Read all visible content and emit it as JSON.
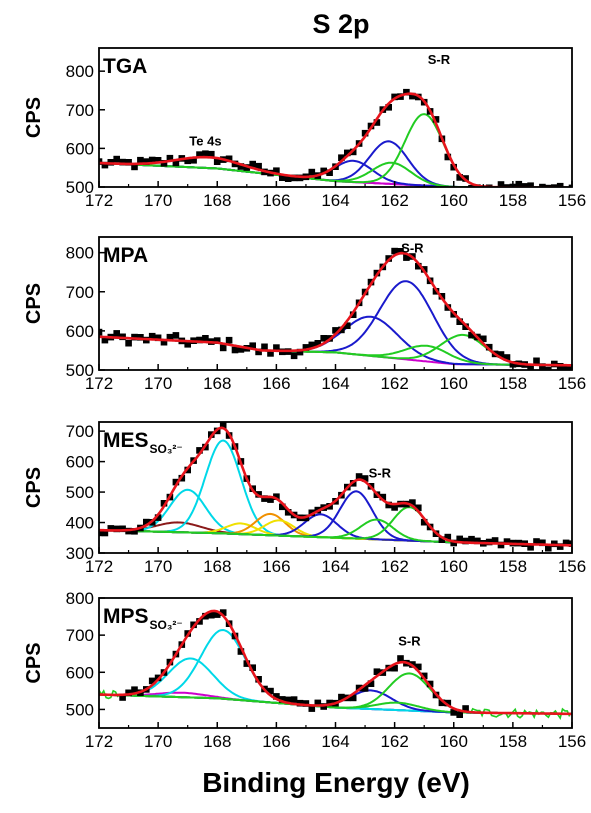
{
  "chart_data": {
    "title": "S 2p",
    "xlabel": "Binding Energy (eV)",
    "colors": {
      "data": "#000000",
      "envelope": "#e8141c",
      "background": "#cc00cc",
      "sr_a": "#1a1acc",
      "sr_b": "#22cc22",
      "sulfonate_a": "#00d8e8",
      "extra_a": "#f0e000",
      "extra_b": "#f09000",
      "brown": "#8b1a1a",
      "noisy_line": "#22cc22"
    },
    "panels": [
      {
        "type": "scatter",
        "label": "TGA",
        "label_sub": "",
        "ylabel": "CPS",
        "x_ticks": [
          "172",
          "170",
          "168",
          "166",
          "164",
          "162",
          "160",
          "158",
          "156"
        ],
        "y_ticks": [
          "500",
          "600",
          "700",
          "800"
        ],
        "xlim": [
          172,
          156
        ],
        "ylim": [
          500,
          860
        ],
        "annotations": [
          {
            "text": "Te 4s",
            "x": 168.4,
            "y": 608
          },
          {
            "text": "S-R",
            "x": 160.5,
            "y": 818
          }
        ],
        "background": [
          [
            172,
            562
          ],
          [
            168,
            548
          ],
          [
            164,
            515
          ],
          [
            160,
            500
          ],
          [
            156,
            498
          ]
        ],
        "peaks": [
          {
            "role": "te",
            "center": 168.3,
            "height": 28,
            "width": 1.1,
            "color": "#cc00cc"
          },
          {
            "role": "sr",
            "center": 163.4,
            "height": 55,
            "width": 0.65,
            "color": "#1a1acc"
          },
          {
            "role": "sr",
            "center": 162.2,
            "height": 110,
            "width": 0.65,
            "color": "#1a1acc"
          },
          {
            "role": "sr",
            "center": 162.1,
            "height": 55,
            "width": 0.65,
            "color": "#22cc22"
          },
          {
            "role": "sr",
            "center": 161.0,
            "height": 185,
            "width": 0.65,
            "color": "#22cc22"
          }
        ],
        "noise": 10
      },
      {
        "type": "scatter",
        "label": "MPA",
        "label_sub": "",
        "ylabel": "CPS",
        "x_ticks": [
          "172",
          "170",
          "168",
          "166",
          "164",
          "162",
          "160",
          "158",
          "156"
        ],
        "y_ticks": [
          "500",
          "600",
          "700",
          "800"
        ],
        "xlim": [
          172,
          156
        ],
        "ylim": [
          500,
          840
        ],
        "annotations": [
          {
            "text": "S-R",
            "x": 161.4,
            "y": 800
          }
        ],
        "background": [
          [
            172,
            585
          ],
          [
            168,
            570
          ],
          [
            166.5,
            550
          ],
          [
            164,
            545
          ],
          [
            160,
            515
          ],
          [
            156,
            512
          ]
        ],
        "peaks": [
          {
            "role": "sr",
            "center": 162.8,
            "height": 100,
            "width": 0.9,
            "color": "#1a1acc"
          },
          {
            "role": "sr",
            "center": 161.6,
            "height": 200,
            "width": 0.9,
            "color": "#1a1acc"
          },
          {
            "role": "sr",
            "center": 160.9,
            "height": 40,
            "width": 0.75,
            "color": "#22cc22"
          },
          {
            "role": "sr",
            "center": 159.7,
            "height": 75,
            "width": 0.75,
            "color": "#22cc22"
          }
        ],
        "noise": 11
      },
      {
        "type": "scatter",
        "label": "MES",
        "label_sub": "SO₃²⁻",
        "ylabel": "CPS",
        "x_ticks": [
          "172",
          "170",
          "168",
          "166",
          "164",
          "162",
          "160",
          "158",
          "156"
        ],
        "y_ticks": [
          "300",
          "400",
          "500",
          "600",
          "700"
        ],
        "xlim": [
          172,
          156
        ],
        "ylim": [
          300,
          730
        ],
        "annotations": [
          {
            "text": "S-R",
            "x": 162.5,
            "y": 548
          }
        ],
        "background": [
          [
            172,
            375
          ],
          [
            168,
            365
          ],
          [
            164,
            350
          ],
          [
            160,
            335
          ],
          [
            156,
            325
          ]
        ],
        "peaks": [
          {
            "role": "brown",
            "center": 169.3,
            "height": 32,
            "width": 0.75,
            "color": "#8b1a1a"
          },
          {
            "role": "sulfonate",
            "center": 169.0,
            "height": 140,
            "width": 0.6,
            "color": "#00d8e8"
          },
          {
            "role": "sulfonate",
            "center": 167.8,
            "height": 305,
            "width": 0.6,
            "color": "#00d8e8"
          },
          {
            "role": "extra",
            "center": 167.2,
            "height": 35,
            "width": 0.5,
            "color": "#f0e000"
          },
          {
            "role": "extra",
            "center": 166.2,
            "height": 70,
            "width": 0.5,
            "color": "#f09000"
          },
          {
            "role": "extra2",
            "center": 165.9,
            "height": 50,
            "width": 0.5,
            "color": "#f0e000"
          },
          {
            "role": "sr",
            "center": 164.5,
            "height": 75,
            "width": 0.55,
            "color": "#1a1acc"
          },
          {
            "role": "sr",
            "center": 163.3,
            "height": 155,
            "width": 0.55,
            "color": "#1a1acc"
          },
          {
            "role": "sr",
            "center": 162.6,
            "height": 65,
            "width": 0.55,
            "color": "#22cc22"
          },
          {
            "role": "sr",
            "center": 161.5,
            "height": 110,
            "width": 0.55,
            "color": "#22cc22"
          }
        ],
        "noise": 10
      },
      {
        "type": "scatter",
        "label": "MPS",
        "label_sub": "SO₃²⁻",
        "ylabel": "CPS",
        "x_ticks": [
          "172",
          "170",
          "168",
          "166",
          "164",
          "162",
          "160",
          "158",
          "156"
        ],
        "y_ticks": [
          "500",
          "600",
          "700",
          "800"
        ],
        "xlim": [
          172,
          156
        ],
        "ylim": [
          450,
          800
        ],
        "annotations": [
          {
            "text": "S-R",
            "x": 161.5,
            "y": 672
          }
        ],
        "background": [
          [
            172,
            540
          ],
          [
            168,
            530
          ],
          [
            164,
            505
          ],
          [
            160,
            492
          ],
          [
            156,
            488
          ]
        ],
        "peaks": [
          {
            "role": "mag",
            "center": 169.2,
            "height": 12,
            "width": 0.8,
            "color": "#cc00cc"
          },
          {
            "role": "sulfonate",
            "center": 168.9,
            "height": 105,
            "width": 0.75,
            "color": "#00d8e8"
          },
          {
            "role": "sulfonate",
            "center": 167.8,
            "height": 185,
            "width": 0.75,
            "color": "#00d8e8"
          },
          {
            "role": "sr",
            "center": 162.8,
            "height": 50,
            "width": 0.7,
            "color": "#1a1acc"
          },
          {
            "role": "sr",
            "center": 161.9,
            "height": 20,
            "width": 0.7,
            "color": "#22cc22"
          },
          {
            "role": "sr",
            "center": 161.5,
            "height": 100,
            "width": 0.7,
            "color": "#22cc22"
          }
        ],
        "noise": 10
      }
    ]
  }
}
